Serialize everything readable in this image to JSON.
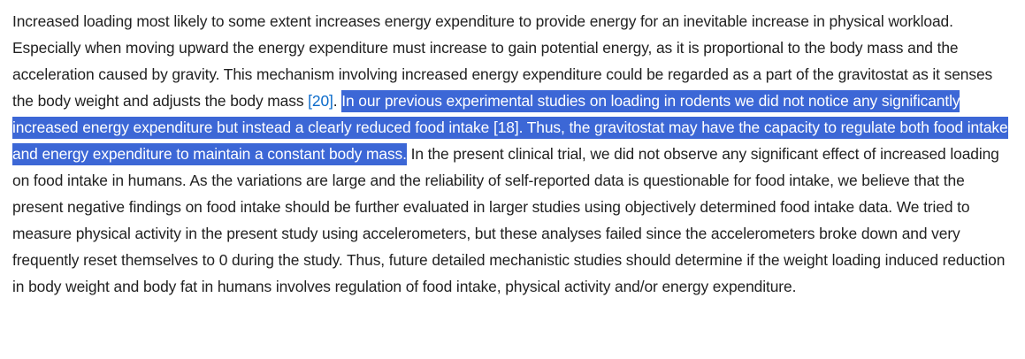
{
  "paragraph": {
    "seg1": "Increased loading most likely to some extent increases energy expenditure to provide energy for an inevitable increase in physical workload. Especially when moving upward the energy expenditure must increase to gain potential energy, as it is proportional to the body mass and the acceleration caused by gravity. This mechanism involving increased energy expenditure could be regarded as a part of the gravitostat as it senses the body weight and adjusts the body mass ",
    "citation_20": "[20]",
    "seg2": ". ",
    "selected_seg1": "In our previous experimental studies on loading in rodents we did not notice any significantly increased energy expenditure but instead a clearly reduced food intake ",
    "citation_18": "[18]",
    "selected_seg2": ". Thus, the gravitostat may have the capacity to regulate both food intake and energy expenditure to maintain a constant body mass.",
    "seg3": " In the present clinical trial, we did not observe any significant effect of increased loading on food intake in humans. As the variations are large and the reliability of self-reported data is questionable for food intake, we believe that the present negative findings on food intake should be further evaluated in larger studies using objectively determined food intake data. We tried to measure physical activity in the present study using accelerometers, but these analyses failed since the accelerometers broke down and very frequently reset themselves to 0 during the study. Thus, future detailed mechanistic studies should determine if the weight loading induced reduction in body weight and body fat in humans involves regulation of food intake, physical activity and/or energy expenditure."
  },
  "colors": {
    "text": "#212121",
    "link": "#0b6bcb",
    "selection_bg": "#3c67d6",
    "selection_text": "#ffffff"
  }
}
